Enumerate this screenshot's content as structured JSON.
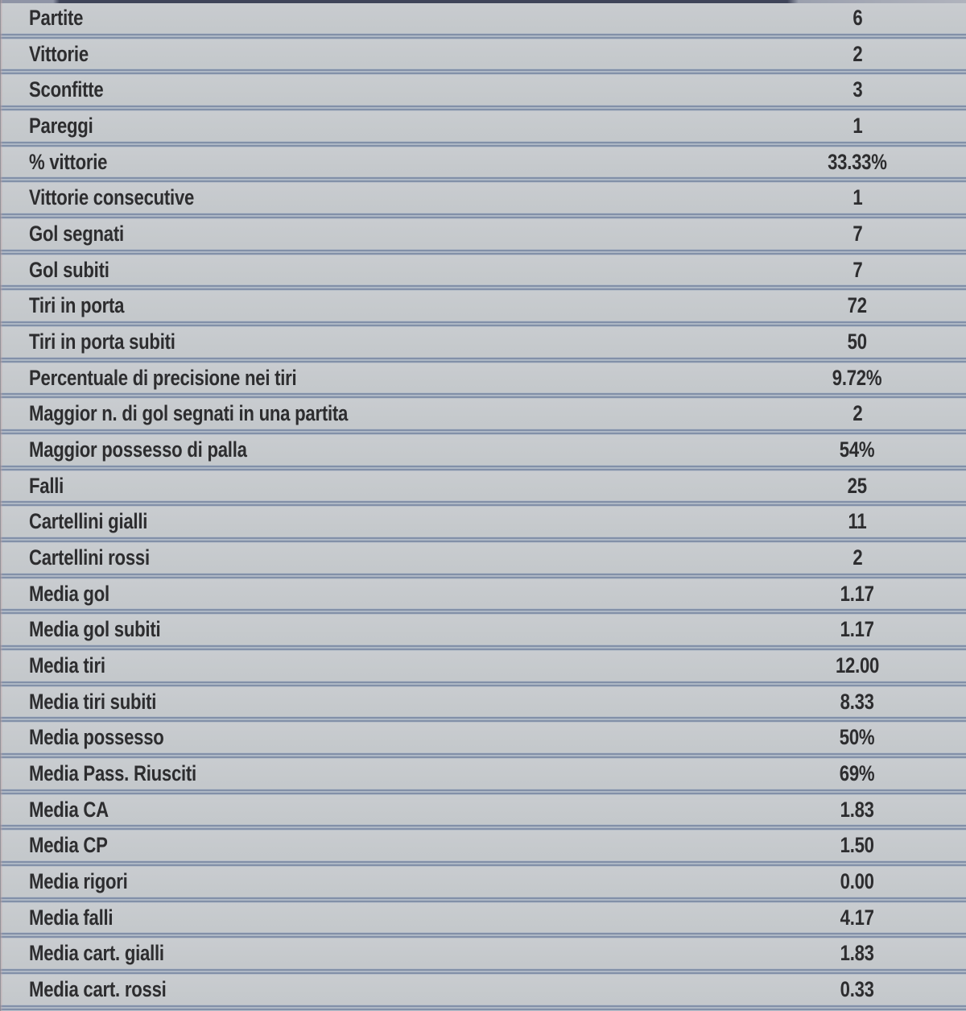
{
  "colors": {
    "row_background": "#c6cacd",
    "separator_dark": "#8290a8",
    "separator_light": "#aeb8c5",
    "text": "#2d2d2f",
    "top_strip_dark": "#3f4459"
  },
  "table": {
    "rows": [
      {
        "label": "Partite",
        "value": "6"
      },
      {
        "label": "Vittorie",
        "value": "2"
      },
      {
        "label": "Sconfitte",
        "value": "3"
      },
      {
        "label": "Pareggi",
        "value": "1"
      },
      {
        "label": "% vittorie",
        "value": "33.33%"
      },
      {
        "label": "Vittorie consecutive",
        "value": "1"
      },
      {
        "label": "Gol segnati",
        "value": "7"
      },
      {
        "label": "Gol subiti",
        "value": "7"
      },
      {
        "label": "Tiri in porta",
        "value": "72"
      },
      {
        "label": "Tiri in porta subiti",
        "value": "50"
      },
      {
        "label": "Percentuale di precisione nei tiri",
        "value": "9.72%"
      },
      {
        "label": "Maggior n. di gol segnati in una partita",
        "value": "2"
      },
      {
        "label": "Maggior possesso di palla",
        "value": "54%"
      },
      {
        "label": "Falli",
        "value": "25"
      },
      {
        "label": "Cartellini gialli",
        "value": "11"
      },
      {
        "label": "Cartellini rossi",
        "value": "2"
      },
      {
        "label": "Media gol",
        "value": "1.17"
      },
      {
        "label": "Media gol subiti",
        "value": "1.17"
      },
      {
        "label": "Media tiri",
        "value": "12.00"
      },
      {
        "label": "Media tiri subiti",
        "value": "8.33"
      },
      {
        "label": "Media possesso",
        "value": "50%"
      },
      {
        "label": "Media Pass. Riusciti",
        "value": "69%"
      },
      {
        "label": "Media CA",
        "value": "1.83"
      },
      {
        "label": "Media CP",
        "value": "1.50"
      },
      {
        "label": "Media rigori",
        "value": "0.00"
      },
      {
        "label": "Media falli",
        "value": "4.17"
      },
      {
        "label": "Media cart. gialli",
        "value": "1.83"
      },
      {
        "label": "Media cart. rossi",
        "value": "0.33"
      }
    ]
  }
}
